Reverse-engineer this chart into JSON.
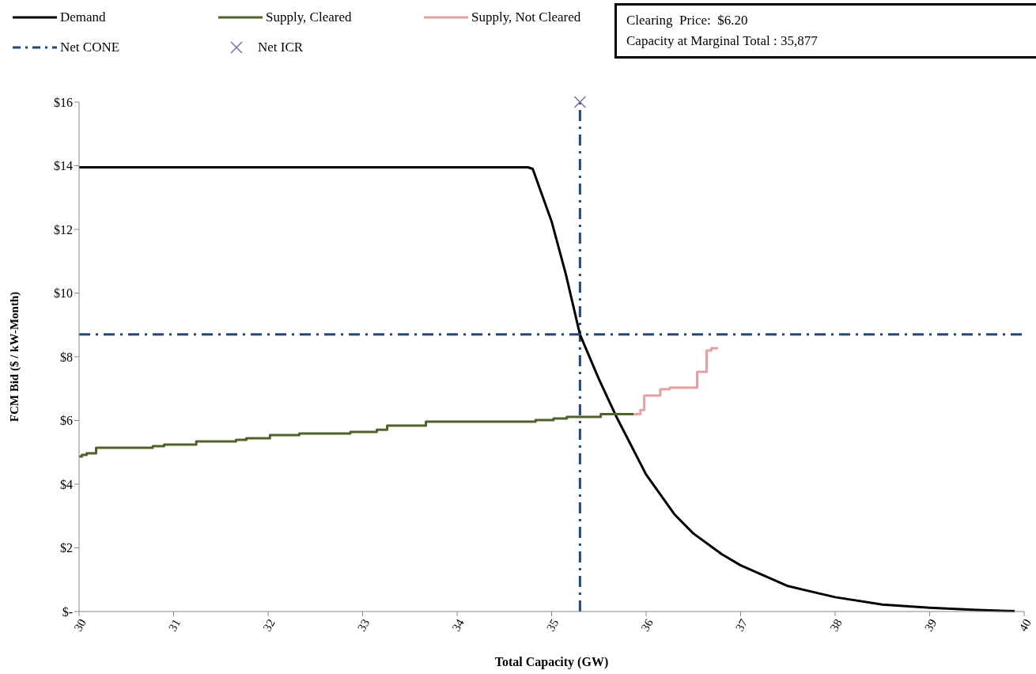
{
  "chart_data": {
    "type": "step",
    "xlabel": "Total  Capacity  (GW)",
    "ylabel": "FCM  Bid ($ / kW-Month)",
    "annotations": [
      "Clearing  Price:  $6.20",
      "Capacity at Marginal Total : 35,877"
    ],
    "xlim": [
      30,
      40
    ],
    "xticks": [
      30,
      31,
      32,
      33,
      34,
      35,
      36,
      37,
      38,
      39,
      40
    ],
    "ylim": [
      0,
      16
    ],
    "yticks": [
      {
        "value": 0,
        "label": "$-"
      },
      {
        "value": 2,
        "label": "$2"
      },
      {
        "value": 4,
        "label": "$4"
      },
      {
        "value": 6,
        "label": "$6"
      },
      {
        "value": 8,
        "label": "$8"
      },
      {
        "value": 10,
        "label": "$10"
      },
      {
        "value": 12,
        "label": "$12"
      },
      {
        "value": 14,
        "label": "$14"
      },
      {
        "value": 16,
        "label": "$16"
      }
    ],
    "grid": false,
    "legend": "top",
    "line_style": "solid",
    "ref_lines": [
      {
        "axis": "x",
        "value": 35.3,
        "color": "#1f497d",
        "line_style": "dashed"
      }
    ],
    "series": [
      {
        "name": "Demand",
        "type": "line",
        "color": "#000000",
        "x": [
          30,
          34.75,
          34.8,
          35,
          35.15,
          35.3,
          35.5,
          35.68,
          36,
          36.3,
          36.5,
          36.8,
          37,
          37.5,
          38,
          38.5,
          39,
          39.5,
          39.9
        ],
        "values": [
          13.95,
          13.95,
          13.9,
          12.25,
          10.6,
          8.7,
          7.3,
          6.15,
          4.3,
          3.05,
          2.45,
          1.8,
          1.45,
          0.8,
          0.45,
          0.22,
          0.12,
          0.05,
          0.01
        ]
      },
      {
        "name": "Supply, Cleared",
        "color": "#4f6228",
        "x": [
          30,
          30.03,
          30.08,
          30.18,
          30.78,
          30.9,
          31.24,
          31.66,
          31.77,
          32.02,
          32.33,
          32.87,
          33.15,
          33.26,
          33.67,
          34.83,
          35.02,
          35.16,
          35.52,
          35.87
        ],
        "values": [
          4.87,
          4.92,
          4.97,
          5.14,
          5.19,
          5.24,
          5.34,
          5.39,
          5.44,
          5.54,
          5.59,
          5.64,
          5.71,
          5.84,
          5.96,
          6.01,
          6.06,
          6.11,
          6.2,
          6.2
        ]
      },
      {
        "name": "Supply, Not Cleared",
        "color": "#e6a0a0",
        "x": [
          35.87,
          35.94,
          35.98,
          36.15,
          36.25,
          36.54,
          36.64,
          36.69,
          36.76
        ],
        "values": [
          6.2,
          6.33,
          6.78,
          6.98,
          7.03,
          7.53,
          8.2,
          8.27,
          8.27
        ]
      },
      {
        "name": "Net CONE",
        "type": "line",
        "line_style": "dashed",
        "color": "#1f497d",
        "x": [
          30,
          40
        ],
        "values": [
          8.7,
          8.7
        ]
      },
      {
        "name": "Net ICR",
        "type": "scatter",
        "marker": "cross",
        "color": "#7b6ca8",
        "x": [
          35.3
        ],
        "values": [
          16
        ]
      }
    ]
  }
}
